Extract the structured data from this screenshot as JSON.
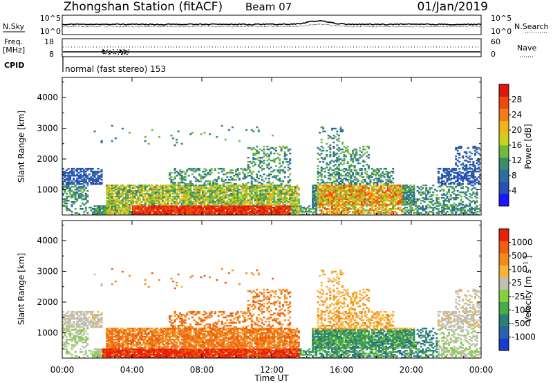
{
  "header": {
    "station": "Zhongshan Station (fitACF)",
    "beam": "Beam 07",
    "date": "01/Jan/2019"
  },
  "strip_panels": {
    "sky_label": "N.Sky",
    "sky_ticks": [
      "10^5",
      "10^0"
    ],
    "search_label": "N.Search",
    "search_ticks": [
      "10^5",
      "10^0"
    ],
    "freq_label_1": "Freq.",
    "freq_label_2": "[MHz]",
    "freq_ticks": [
      "18",
      "8"
    ],
    "nave_label": "Nave",
    "nave_ticks": [
      "60",
      "0"
    ],
    "cpid_label": "CPID",
    "cpid_text": "normal (fast stereo) 153"
  },
  "chart_data": [
    {
      "type": "heatmap",
      "name": "power",
      "ylabel": "Slant Range [km]",
      "yticks": [
        1000,
        2000,
        3000,
        4000
      ],
      "ylim": [
        180,
        4650
      ],
      "xlim": [
        0,
        24
      ],
      "colorbar_label": "Power [dB]",
      "colorbar_ticks": [
        "28",
        "24",
        "20",
        "16",
        "12",
        "8",
        "4"
      ],
      "colors": [
        "#1717ff",
        "#2a4fb5",
        "#2e6e9e",
        "#3b8c6a",
        "#6fba3c",
        "#c8d21c",
        "#f2b21e",
        "#f27d14",
        "#f04a0c",
        "#dd1a0a"
      ]
    },
    {
      "type": "heatmap",
      "name": "velocity",
      "ylabel": "Slant Range [km]",
      "yticks": [
        1000,
        2000,
        3000,
        4000
      ],
      "ylim": [
        180,
        4650
      ],
      "xlim": [
        0,
        24
      ],
      "xlabel": "Time UT",
      "xticks": [
        "00:00",
        "04:00",
        "08:00",
        "12:00",
        "16:00",
        "20:00",
        "00:00"
      ],
      "colorbar_label": "Velocity",
      "colorbar_unit": "[m s",
      "colorbar_unit_sup": "-1",
      "colorbar_unit_end": "]",
      "colorbar_ticks": [
        "1000",
        "500",
        "100",
        "25",
        "-25",
        "-100",
        "-500",
        "-1000"
      ],
      "colors": [
        "#1a3bd1",
        "#2a62b0",
        "#2e7f72",
        "#4aaa48",
        "#86cf40",
        "#bfbfb4",
        "#f5b43a",
        "#f18a1d",
        "#ee5f12",
        "#e8220a"
      ]
    }
  ]
}
